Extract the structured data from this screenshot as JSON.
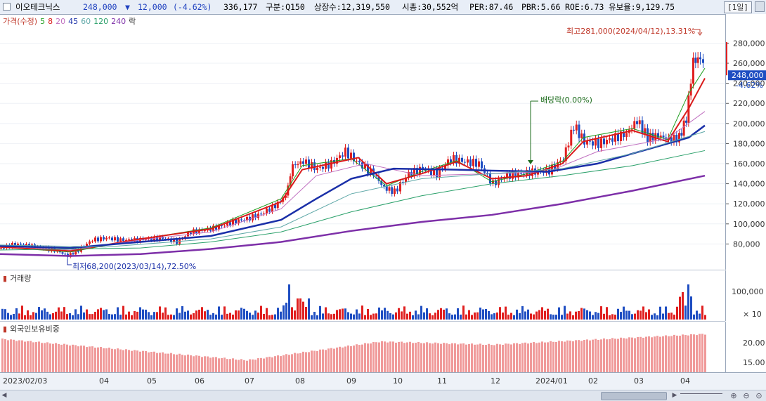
{
  "header": {
    "stock_name": "이오테크닉스",
    "price": "248,000",
    "change_arrow": "▼",
    "change": "12,000",
    "change_pct": "(-4.62%)",
    "volume": "336,177",
    "market": "구분:Q150",
    "shares": "상장수:12,319,550",
    "market_cap": "시총:30,552억",
    "per": "PER:87.46",
    "pbr": "PBR:5.66",
    "roe": "ROE:6.73",
    "reserve": "유보율:9,129.75",
    "period": "[1일]"
  },
  "legend": {
    "price_label": "가격(수정)",
    "ma_labels": [
      "5",
      "8",
      "20",
      "45",
      "60",
      "120",
      "240"
    ],
    "ex_label": "락",
    "ma_colors": [
      "#1e9e1e",
      "#d91b1b",
      "#c070c0",
      "#1a2fa8",
      "#5fa8a8",
      "#2aa06a",
      "#7d2fa8"
    ]
  },
  "annotations": {
    "high": "최고281,000(2024/04/12),13.31%",
    "low": "최저68,200(2023/03/14),72.50%",
    "dividend": "배당락(0.00%)"
  },
  "price_axis": {
    "ticks": [
      "280,000",
      "260,000",
      "240,000",
      "220,000",
      "200,000",
      "180,000",
      "160,000",
      "140,000",
      "120,000",
      "100,000",
      "80,000"
    ],
    "current": "248,000",
    "current_pct": "-4.62%"
  },
  "volume_pane": {
    "label": "거래량",
    "ticks": [
      "100,000"
    ],
    "unit": "× 10"
  },
  "foreign_pane": {
    "label": "외국인보유비중",
    "ticks": [
      "20.00",
      "15.00"
    ]
  },
  "x_axis": {
    "labels": [
      "2023/02/03",
      "04",
      "05",
      "06",
      "07",
      "08",
      "09",
      "10",
      "11",
      "12",
      "2024/01",
      "02",
      "03",
      "04"
    ]
  },
  "chart_data": {
    "type": "candlestick",
    "title": "이오테크닉스",
    "price_range": [
      60000,
      295000
    ],
    "series": [
      {
        "name": "가격(수정) close",
        "points": [
          [
            0,
            76000
          ],
          [
            20,
            80000
          ],
          [
            40,
            78000
          ],
          [
            60,
            76000
          ],
          [
            80,
            73000
          ],
          [
            95,
            68200
          ],
          [
            110,
            74000
          ],
          [
            130,
            84000
          ],
          [
            150,
            86000
          ],
          [
            170,
            84000
          ],
          [
            190,
            84000
          ],
          [
            210,
            85000
          ],
          [
            230,
            86000
          ],
          [
            250,
            82000
          ],
          [
            270,
            92000
          ],
          [
            290,
            94000
          ],
          [
            310,
            97000
          ],
          [
            330,
            102000
          ],
          [
            350,
            105000
          ],
          [
            370,
            110000
          ],
          [
            390,
            118000
          ],
          [
            405,
            128000
          ],
          [
            415,
            158000
          ],
          [
            430,
            162000
          ],
          [
            450,
            155000
          ],
          [
            470,
            160000
          ],
          [
            490,
            172000
          ],
          [
            510,
            160000
          ],
          [
            530,
            150000
          ],
          [
            545,
            136000
          ],
          [
            560,
            132000
          ],
          [
            580,
            150000
          ],
          [
            600,
            155000
          ],
          [
            620,
            150000
          ],
          [
            640,
            165000
          ],
          [
            660,
            162000
          ],
          [
            680,
            160000
          ],
          [
            700,
            140000
          ],
          [
            720,
            148000
          ],
          [
            740,
            150000
          ],
          [
            760,
            152000
          ],
          [
            780,
            153000
          ],
          [
            800,
            165000
          ],
          [
            815,
            198000
          ],
          [
            830,
            182000
          ],
          [
            850,
            180000
          ],
          [
            870,
            185000
          ],
          [
            890,
            190000
          ],
          [
            905,
            203000
          ],
          [
            920,
            186000
          ],
          [
            935,
            188000
          ],
          [
            950,
            184000
          ],
          [
            965,
            186000
          ],
          [
            975,
            205000
          ],
          [
            985,
            262000
          ],
          [
            995,
            265000
          ],
          [
            1003,
            248000
          ]
        ]
      },
      {
        "name": "MA5",
        "points": [
          [
            0,
            77000
          ],
          [
            100,
            72000
          ],
          [
            200,
            85000
          ],
          [
            300,
            96000
          ],
          [
            400,
            125000
          ],
          [
            430,
            158000
          ],
          [
            500,
            165000
          ],
          [
            550,
            138000
          ],
          [
            600,
            152000
          ],
          [
            650,
            163000
          ],
          [
            700,
            142000
          ],
          [
            750,
            150000
          ],
          [
            800,
            162000
          ],
          [
            830,
            186000
          ],
          [
            900,
            195000
          ],
          [
            950,
            184000
          ],
          [
            980,
            230000
          ],
          [
            1003,
            255000
          ]
        ]
      },
      {
        "name": "MA8",
        "points": [
          [
            0,
            77000
          ],
          [
            100,
            73000
          ],
          [
            200,
            85000
          ],
          [
            300,
            95000
          ],
          [
            400,
            122000
          ],
          [
            430,
            154000
          ],
          [
            510,
            166000
          ],
          [
            550,
            140000
          ],
          [
            600,
            150000
          ],
          [
            650,
            162000
          ],
          [
            700,
            145000
          ],
          [
            750,
            148000
          ],
          [
            800,
            160000
          ],
          [
            830,
            182000
          ],
          [
            900,
            193000
          ],
          [
            950,
            182000
          ],
          [
            980,
            215000
          ],
          [
            1003,
            245000
          ]
        ]
      },
      {
        "name": "MA20",
        "points": [
          [
            0,
            78000
          ],
          [
            100,
            74000
          ],
          [
            200,
            84000
          ],
          [
            300,
            92000
          ],
          [
            400,
            115000
          ],
          [
            450,
            148000
          ],
          [
            520,
            160000
          ],
          [
            600,
            148000
          ],
          [
            700,
            150000
          ],
          [
            780,
            152000
          ],
          [
            850,
            172000
          ],
          [
            950,
            185000
          ],
          [
            1003,
            212000
          ]
        ]
      },
      {
        "name": "MA45",
        "points": [
          [
            0,
            78000
          ],
          [
            100,
            76000
          ],
          [
            200,
            82000
          ],
          [
            300,
            88000
          ],
          [
            400,
            104000
          ],
          [
            450,
            125000
          ],
          [
            500,
            145000
          ],
          [
            560,
            155000
          ],
          [
            650,
            154000
          ],
          [
            700,
            153000
          ],
          [
            780,
            152000
          ],
          [
            850,
            160000
          ],
          [
            930,
            176000
          ],
          [
            980,
            186000
          ],
          [
            1003,
            198000
          ]
        ]
      },
      {
        "name": "MA60",
        "points": [
          [
            0,
            79000
          ],
          [
            150,
            77000
          ],
          [
            300,
            85000
          ],
          [
            400,
            97000
          ],
          [
            500,
            130000
          ],
          [
            600,
            145000
          ],
          [
            700,
            150000
          ],
          [
            800,
            155000
          ],
          [
            900,
            170000
          ],
          [
            1003,
            192000
          ]
        ]
      },
      {
        "name": "MA120",
        "points": [
          [
            0,
            74000
          ],
          [
            200,
            76000
          ],
          [
            300,
            82000
          ],
          [
            400,
            92000
          ],
          [
            500,
            112000
          ],
          [
            600,
            128000
          ],
          [
            700,
            140000
          ],
          [
            800,
            148000
          ],
          [
            900,
            158000
          ],
          [
            1003,
            173000
          ]
        ]
      },
      {
        "name": "MA240",
        "points": [
          [
            0,
            70000
          ],
          [
            100,
            68000
          ],
          [
            200,
            70000
          ],
          [
            300,
            75000
          ],
          [
            400,
            82000
          ],
          [
            500,
            93000
          ],
          [
            600,
            102000
          ],
          [
            700,
            109000
          ],
          [
            800,
            120000
          ],
          [
            900,
            133000
          ],
          [
            1003,
            148000
          ]
        ]
      }
    ],
    "volume_ticks": [
      100000
    ],
    "foreign_ratio_ticks": [
      20.0,
      15.0
    ],
    "x_labels": [
      "2023/02/03",
      "04",
      "05",
      "06",
      "07",
      "08",
      "09",
      "10",
      "11",
      "12",
      "2024/01",
      "02",
      "03",
      "04"
    ]
  }
}
